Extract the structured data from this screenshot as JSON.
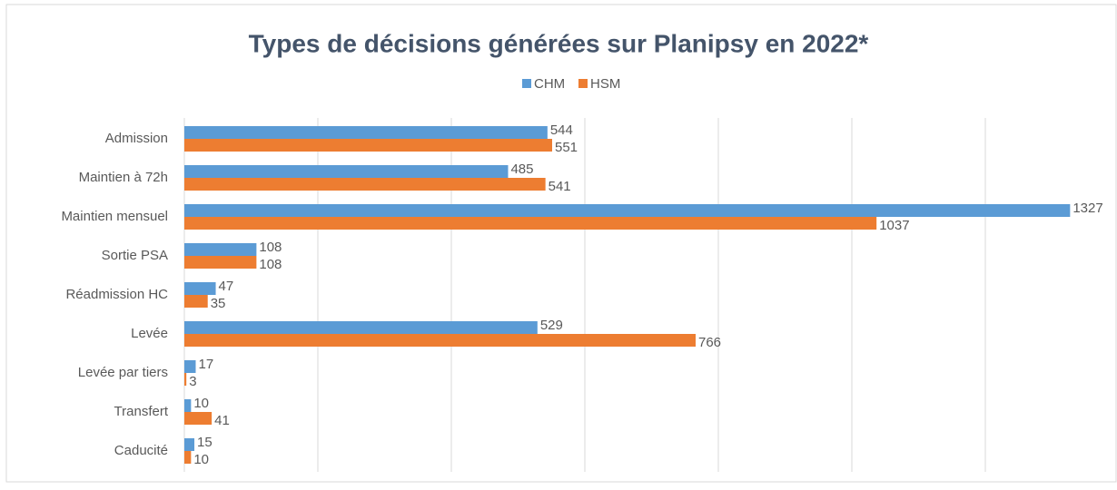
{
  "chart_data": {
    "type": "hbar",
    "title": "Types de décisions générées sur Planipsy en 2022*",
    "categories": [
      "Admission",
      "Maintien à 72h",
      "Maintien mensuel",
      "Sortie PSA",
      "Réadmission HC",
      "Levée",
      "Levée par tiers",
      "Transfert",
      "Caducité"
    ],
    "series": [
      {
        "name": "CHM",
        "color": "#5b9bd5",
        "values": [
          544,
          485,
          1327,
          108,
          47,
          529,
          17,
          10,
          15
        ]
      },
      {
        "name": "HSM",
        "color": "#ed7d31",
        "values": [
          551,
          541,
          1037,
          108,
          35,
          766,
          3,
          41,
          10
        ]
      }
    ],
    "xlim": [
      0,
      1400
    ],
    "xticks": [
      0,
      200,
      400,
      600,
      800,
      1000,
      1200,
      1400
    ],
    "grid": true,
    "legend": "top"
  }
}
